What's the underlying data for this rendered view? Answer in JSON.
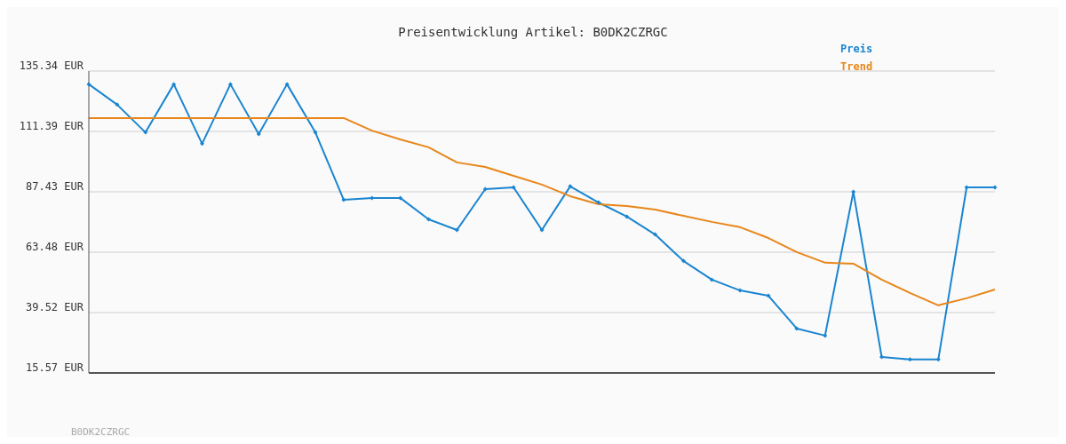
{
  "chart_data": {
    "type": "line",
    "title": "Preisentwicklung Artikel: B0DK2CZRGC",
    "categories": [
      null,
      null,
      null,
      null,
      null,
      null,
      null,
      null,
      null,
      null,
      null,
      null,
      null,
      null,
      null,
      null,
      null,
      null,
      null,
      null,
      null,
      null,
      null,
      null,
      null,
      null,
      null,
      null,
      null,
      null,
      null,
      null,
      null
    ],
    "series": [
      {
        "name": "Preis",
        "color": "#1a85d0",
        "marker": "diamond",
        "values": [
          130.1,
          122.0,
          111.0,
          130.1,
          106.5,
          130.1,
          110.3,
          130.1,
          111.0,
          84.3,
          85.0,
          85.0,
          76.5,
          72.3,
          88.5,
          89.2,
          72.3,
          89.6,
          83.2,
          77.6,
          70.5,
          60.0,
          52.6,
          48.3,
          46.2,
          33.2,
          30.4,
          87.4,
          21.9,
          20.9,
          20.9,
          89.2,
          89.2
        ]
      },
      {
        "name": "Trend",
        "color": "#e8861a",
        "marker": "none",
        "values": [
          116.7,
          116.7,
          116.7,
          116.7,
          116.7,
          116.7,
          116.7,
          116.7,
          116.7,
          116.7,
          111.7,
          108.2,
          105.1,
          99.1,
          97.3,
          93.8,
          90.3,
          85.7,
          82.5,
          81.8,
          80.4,
          77.9,
          75.5,
          73.4,
          69.1,
          63.5,
          59.3,
          58.9,
          52.6,
          47.3,
          42.4,
          45.2,
          48.7
        ]
      }
    ],
    "ylim": [
      15.57,
      135.34
    ],
    "yticks": [
      {
        "value": 15.57,
        "label": "15.57 EUR"
      },
      {
        "value": 39.52,
        "label": "39.52 EUR"
      },
      {
        "value": 63.48,
        "label": "63.48 EUR"
      },
      {
        "value": 87.43,
        "label": "87.43 EUR"
      },
      {
        "value": 111.39,
        "label": "111.39 EUR"
      },
      {
        "value": 135.34,
        "label": "135.34 EUR"
      }
    ],
    "grid": "y",
    "line_style": "solid",
    "tick_labels": "y",
    "annotations": [
      "B0DK2CZRGC"
    ]
  }
}
